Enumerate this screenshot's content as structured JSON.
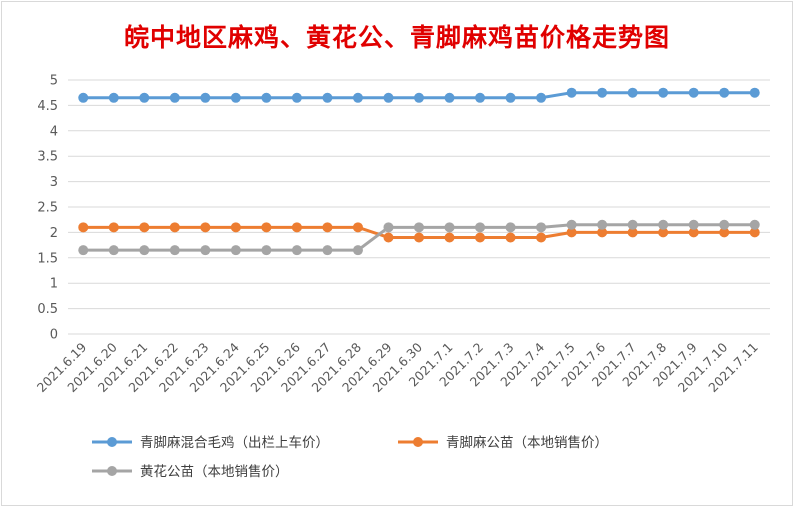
{
  "chart_data": {
    "type": "line",
    "title": "皖中地区麻鸡、黄花公、青脚麻鸡苗价格走势图",
    "xlabel": "",
    "ylabel": "",
    "ylim": [
      0,
      5
    ],
    "y_ticks": [
      "0",
      "0.5",
      "1",
      "1.5",
      "2",
      "2.5",
      "3",
      "3.5",
      "4",
      "4.5",
      "5"
    ],
    "grid": true,
    "legend_position": "bottom-left",
    "categories": [
      "2021.6.19",
      "2021.6.20",
      "2021.6.21",
      "2021.6.22",
      "2021.6.23",
      "2021.6.24",
      "2021.6.25",
      "2021.6.26",
      "2021.6.27",
      "2021.6.28",
      "2021.6.29",
      "2021.6.30",
      "2021.7.1",
      "2021.7.2",
      "2021.7.3",
      "2021.7.4",
      "2021.7.5",
      "2021.7.6",
      "2021.7.7",
      "2021.7.8",
      "2021.7.9",
      "2021.7.10",
      "2021.7.11"
    ],
    "series": [
      {
        "name": "青脚麻混合毛鸡（出栏上车价）",
        "color": "#5b9bd5",
        "values": [
          4.65,
          4.65,
          4.65,
          4.65,
          4.65,
          4.65,
          4.65,
          4.65,
          4.65,
          4.65,
          4.65,
          4.65,
          4.65,
          4.65,
          4.65,
          4.65,
          4.75,
          4.75,
          4.75,
          4.75,
          4.75,
          4.75,
          4.75
        ]
      },
      {
        "name": "青脚麻公苗（本地销售价）",
        "color": "#ed7d31",
        "values": [
          2.1,
          2.1,
          2.1,
          2.1,
          2.1,
          2.1,
          2.1,
          2.1,
          2.1,
          2.1,
          1.9,
          1.9,
          1.9,
          1.9,
          1.9,
          1.9,
          2.0,
          2.0,
          2.0,
          2.0,
          2.0,
          2.0,
          2.0
        ]
      },
      {
        "name": "黄花公苗（本地销售价）",
        "color": "#a5a5a5",
        "values": [
          1.65,
          1.65,
          1.65,
          1.65,
          1.65,
          1.65,
          1.65,
          1.65,
          1.65,
          1.65,
          2.1,
          2.1,
          2.1,
          2.1,
          2.1,
          2.1,
          2.15,
          2.15,
          2.15,
          2.15,
          2.15,
          2.15,
          2.15
        ]
      }
    ]
  }
}
